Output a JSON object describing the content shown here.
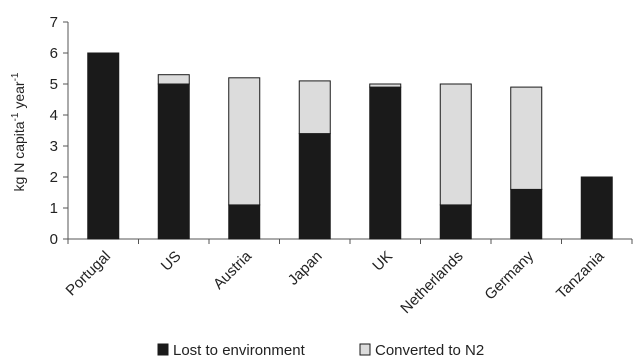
{
  "chart_data": {
    "type": "bar",
    "stacked": true,
    "categories": [
      "Portugal",
      "US",
      "Austria",
      "Japan",
      "UK",
      "Netherlands",
      "Germany",
      "Tanzania"
    ],
    "series": [
      {
        "name": "Lost to environment",
        "values": [
          6.0,
          5.0,
          1.1,
          3.4,
          4.9,
          1.1,
          1.6,
          2.0
        ],
        "color": "#1a1a1a"
      },
      {
        "name": "Converted to N2",
        "values": [
          0.0,
          0.3,
          4.1,
          1.7,
          0.1,
          3.9,
          3.3,
          0.0
        ],
        "color": "#dcdcdc"
      }
    ],
    "ylabel": {
      "base": "kg N capita",
      "sup1": "-1",
      "mid": " year",
      "sup2": "-1"
    },
    "ylim": [
      0,
      7
    ],
    "yticks": [
      "0",
      "1",
      "2",
      "3",
      "4",
      "5",
      "6",
      "7"
    ],
    "grid": false,
    "legend_position": "bottom"
  }
}
